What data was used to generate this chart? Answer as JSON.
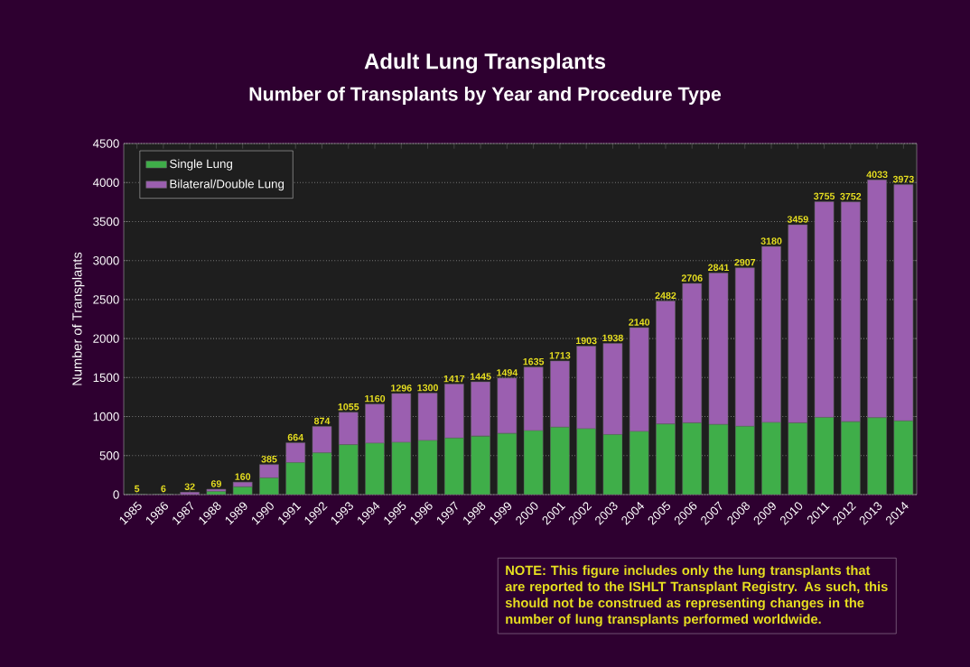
{
  "chart_data": {
    "type": "bar",
    "stacked": true,
    "title": "Adult Lung Transplants",
    "subtitle": "Number of Transplants by Year and Procedure Type",
    "ylabel": "Number of Transplants",
    "categories": [
      "1985",
      "1986",
      "1987",
      "1988",
      "1989",
      "1990",
      "1991",
      "1992",
      "1993",
      "1994",
      "1995",
      "1996",
      "1997",
      "1998",
      "1999",
      "2000",
      "2001",
      "2002",
      "2003",
      "2004",
      "2005",
      "2006",
      "2007",
      "2008",
      "2009",
      "2010",
      "2011",
      "2012",
      "2013",
      "2014"
    ],
    "series": [
      {
        "name": "Single Lung",
        "color": "#3fae49",
        "values": [
          5,
          6,
          null,
          40,
          100,
          215,
          410,
          535,
          640,
          660,
          670,
          695,
          725,
          750,
          785,
          820,
          865,
          845,
          770,
          810,
          905,
          920,
          900,
          875,
          925,
          920,
          990,
          935,
          985,
          945
        ]
      },
      {
        "name": "Bilateral/Double Lung",
        "color": "#9b5fb0",
        "values": [
          null,
          null,
          32,
          29,
          60,
          170,
          254,
          339,
          415,
          500,
          626,
          605,
          692,
          695,
          709,
          815,
          848,
          1058,
          1168,
          1330,
          1577,
          1786,
          1941,
          2032,
          2255,
          2539,
          2765,
          2817,
          3048,
          3028
        ]
      }
    ],
    "totals": [
      "5",
      "6",
      "32",
      "69",
      "160",
      "385",
      "664",
      "874",
      "1055",
      "1160",
      "1296",
      "1300",
      "1417",
      "1445",
      "1494",
      "1635",
      "1713",
      "1903",
      "1938",
      "2140",
      "2482",
      "2706",
      "2841",
      "2907",
      "3180",
      "3459",
      "3755",
      "3752",
      "4033",
      "3973"
    ],
    "ylim": [
      0,
      4500
    ],
    "yticks": [
      0,
      500,
      1000,
      1500,
      2000,
      2500,
      3000,
      3500,
      4000,
      4500
    ],
    "grid": "y",
    "legend": "top left",
    "annotations": [
      "NOTE: This figure includes only the lung transplants that are reported to the ISHLT Transplant Registry.  As such, this should not be construed as representing changes in the number of lung transplants performed worldwide."
    ]
  }
}
